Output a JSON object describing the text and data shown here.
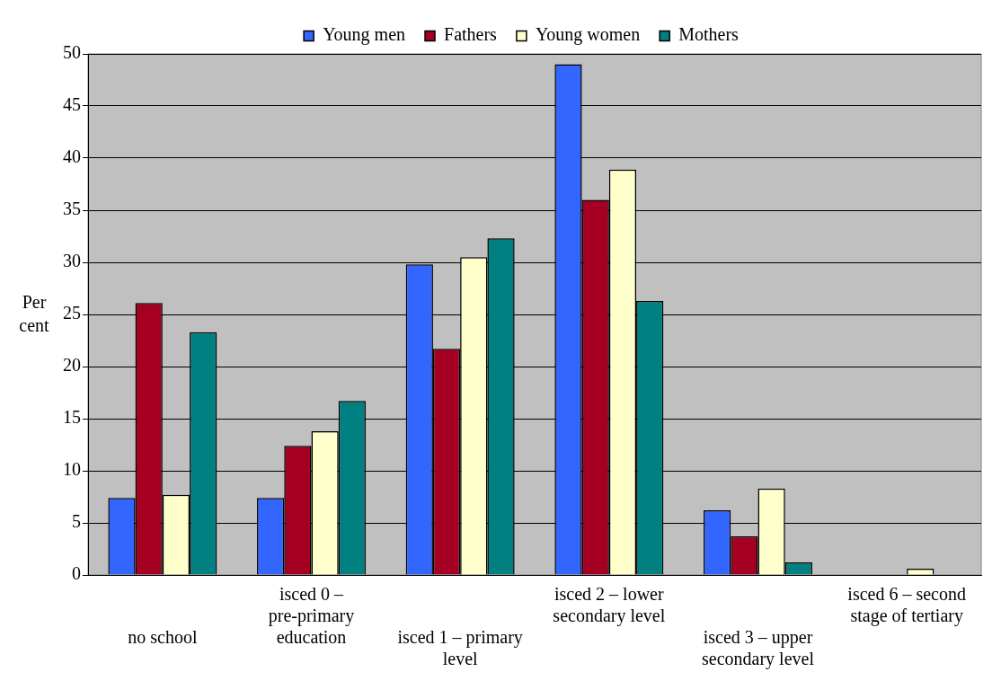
{
  "chart_data": {
    "type": "bar",
    "ylabel": "Per cent",
    "categories": [
      "no school",
      "isced 0 – pre-primary education",
      "isced 1 – primary level",
      "isced 2 – lower secondary level",
      "isced 3 – upper secondary level",
      "isced 6 – second stage of tertiary"
    ],
    "series": [
      {
        "name": "Young men",
        "color": "#3366ff",
        "values": [
          7.4,
          7.4,
          29.8,
          49.0,
          6.2,
          0
        ]
      },
      {
        "name": "Fathers",
        "color": "#a50021",
        "values": [
          26.1,
          12.4,
          21.7,
          36.0,
          3.7,
          0
        ]
      },
      {
        "name": "Young women",
        "color": "#ffffcc",
        "values": [
          7.7,
          13.8,
          30.5,
          38.9,
          8.3,
          0.6
        ]
      },
      {
        "name": "Mothers",
        "color": "#008080",
        "values": [
          23.3,
          16.7,
          32.3,
          26.3,
          1.2,
          0
        ]
      }
    ],
    "ylim": [
      0,
      50
    ],
    "yticks": [
      0,
      5,
      10,
      15,
      20,
      25,
      30,
      35,
      40,
      45,
      50
    ],
    "grid": "y",
    "legend": "top"
  }
}
